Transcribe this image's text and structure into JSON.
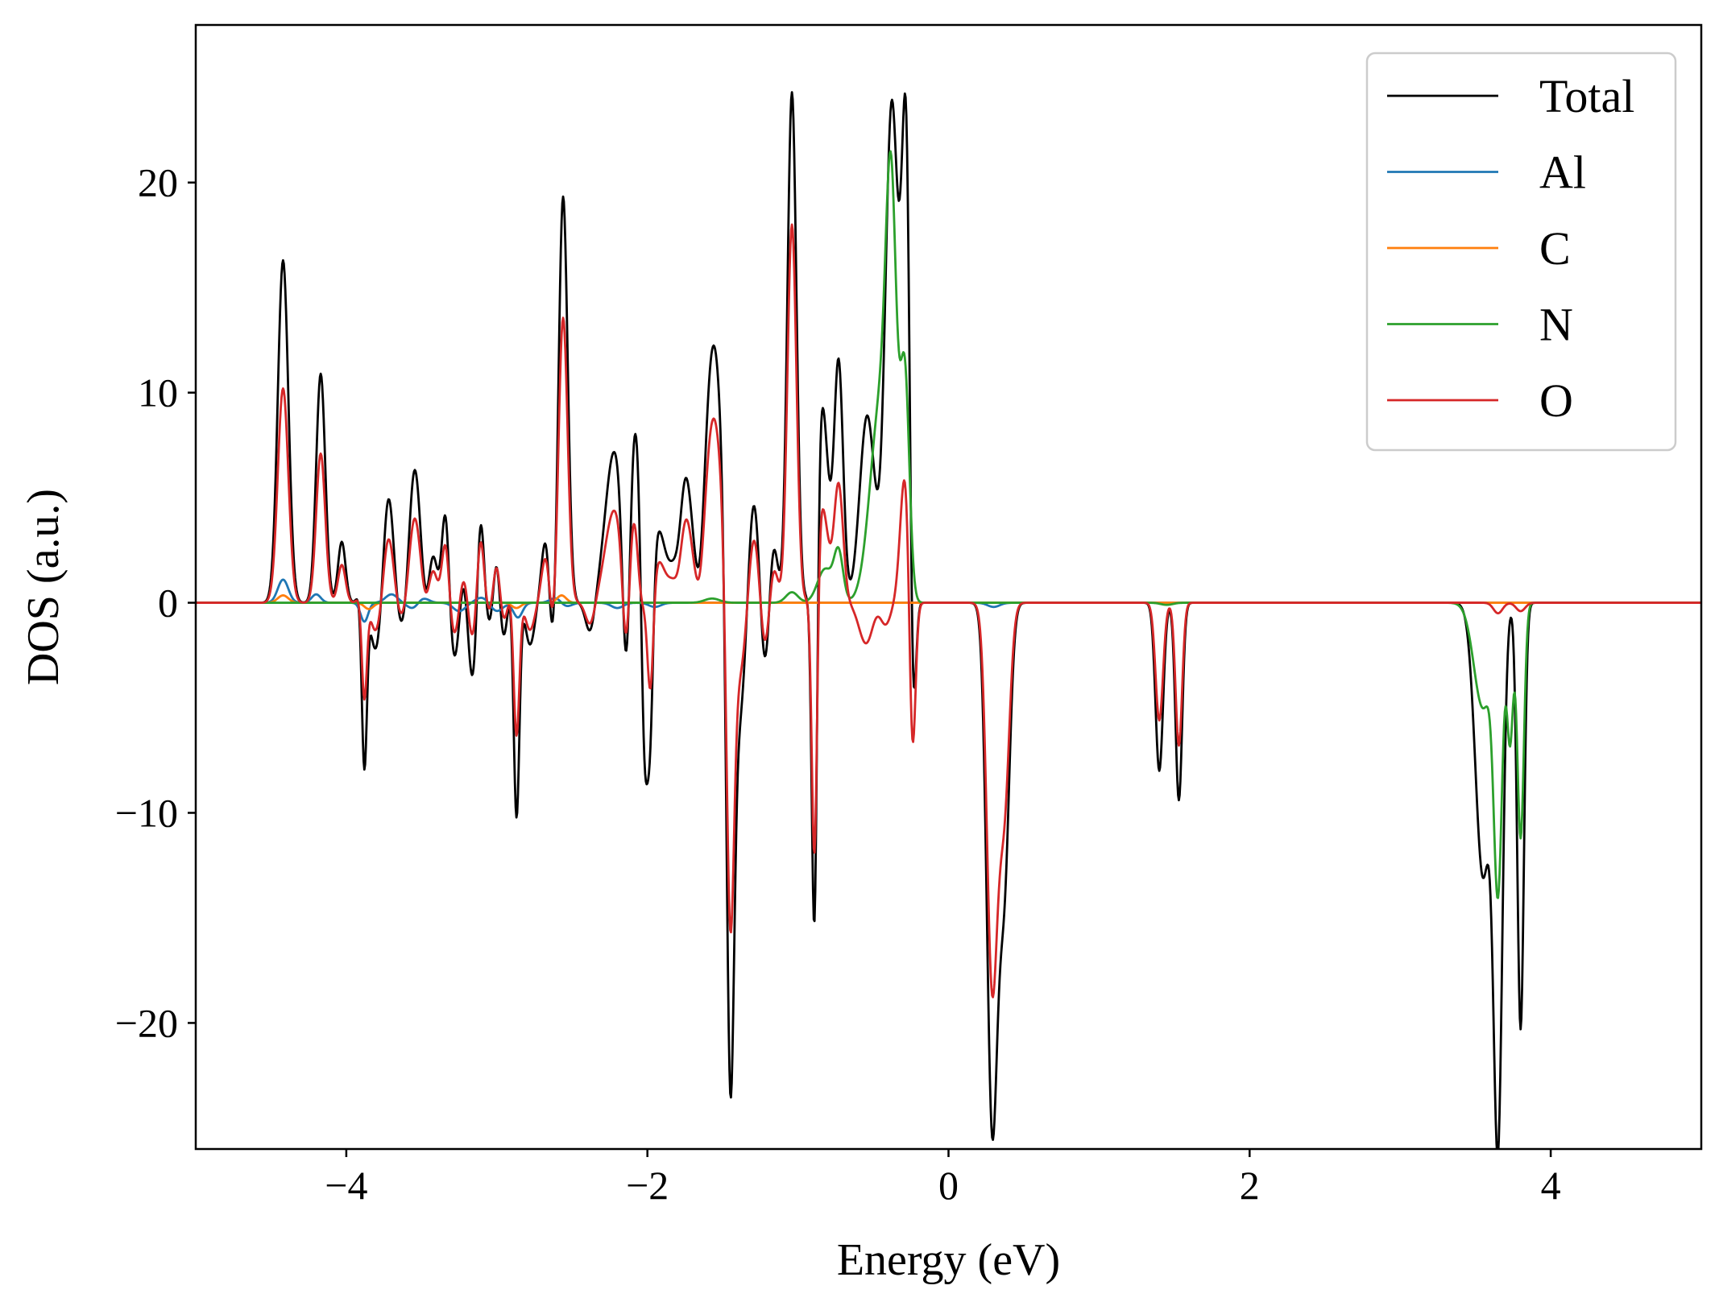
{
  "chart_data": {
    "type": "line",
    "xlabel": "Energy (eV)",
    "ylabel": "DOS (a.u.)",
    "xlim": [
      -5,
      5
    ],
    "ylim": [
      -26,
      27.5
    ],
    "xticks": [
      -4,
      -2,
      0,
      2,
      4
    ],
    "xtick_labels": [
      "−4",
      "−2",
      "0",
      "2",
      "4"
    ],
    "yticks": [
      -20,
      -10,
      0,
      10,
      20
    ],
    "ytick_labels": [
      "−20",
      "−10",
      "0",
      "10",
      "20"
    ],
    "grid": false,
    "legend_position": "top-right",
    "series": [
      {
        "name": "Total",
        "color": "#000000",
        "peaks": [
          [
            -4.42,
            16.3,
            0.035
          ],
          [
            -4.17,
            10.9,
            0.03
          ],
          [
            -4.03,
            2.9,
            0.025
          ],
          [
            -3.88,
            2.9,
            0.025
          ],
          [
            -3.72,
            5.4,
            0.035
          ],
          [
            -3.55,
            7.8,
            0.04
          ],
          [
            -3.43,
            4.0,
            0.03
          ],
          [
            -3.34,
            5.6,
            0.025
          ],
          [
            -3.22,
            4.0,
            0.03
          ],
          [
            -3.11,
            7.1,
            0.025
          ],
          [
            -3.0,
            5.6,
            0.025
          ],
          [
            -2.88,
            2.8,
            0.03
          ],
          [
            -2.67,
            3.5,
            0.03
          ],
          [
            -2.56,
            19.4,
            0.03
          ],
          [
            -2.22,
            7.2,
            0.06
          ],
          [
            -2.08,
            8.2,
            0.04
          ],
          [
            -1.93,
            3.5,
            0.05
          ],
          [
            -1.76,
            7.0,
            0.05
          ],
          [
            -1.56,
            12.3,
            0.06
          ],
          [
            -1.3,
            10.4,
            0.05
          ],
          [
            -1.17,
            4.5,
            0.03
          ],
          [
            -1.04,
            24.3,
            0.03
          ],
          [
            -0.84,
            9.5,
            0.04
          ],
          [
            -0.73,
            11.4,
            0.03
          ],
          [
            -0.54,
            12.5,
            0.05
          ],
          [
            -0.38,
            25.5,
            0.045
          ],
          [
            -0.28,
            22.5,
            0.03
          ]
        ],
        "dips": [
          [
            -3.88,
            -10.5,
            0.018
          ],
          [
            -3.8,
            -2.5,
            0.04
          ],
          [
            -3.6,
            -2.5,
            0.05
          ],
          [
            -3.45,
            -2.3,
            0.035
          ],
          [
            -3.28,
            -3.2,
            0.05
          ],
          [
            -3.15,
            -4.8,
            0.05
          ],
          [
            -2.99,
            -4.0,
            0.04
          ],
          [
            -2.87,
            -12.8,
            0.02
          ],
          [
            -2.78,
            -2.0,
            0.03
          ],
          [
            -2.63,
            -3.6,
            0.025
          ],
          [
            -2.38,
            -1.5,
            0.03
          ],
          [
            -2.14,
            -7.9,
            0.025
          ],
          [
            -2.02,
            -9.8,
            0.022
          ],
          [
            -1.98,
            -7.5,
            0.02
          ],
          [
            -1.79,
            -2.6,
            0.03
          ],
          [
            -1.65,
            -2.4,
            0.03
          ],
          [
            -1.45,
            -23.0,
            0.025
          ],
          [
            -1.36,
            -8.5,
            0.06
          ],
          [
            -1.22,
            -6.0,
            0.04
          ],
          [
            -0.89,
            -19.5,
            0.018
          ],
          [
            -0.54,
            -3.6,
            0.05
          ],
          [
            -0.42,
            -3.0,
            0.04
          ],
          [
            -0.24,
            -11.0,
            0.02
          ],
          [
            0.29,
            -24.5,
            0.035
          ],
          [
            0.37,
            -13.0,
            0.035
          ],
          [
            1.4,
            -8.0,
            0.025
          ],
          [
            1.53,
            -9.4,
            0.022
          ],
          [
            3.65,
            -24.5,
            0.03
          ],
          [
            3.55,
            -13.0,
            0.05
          ],
          [
            3.8,
            -20.3,
            0.022
          ]
        ]
      },
      {
        "name": "Al",
        "color": "#1f77b4",
        "peaks": [
          [
            -4.42,
            1.1,
            0.035
          ],
          [
            -4.2,
            0.4,
            0.03
          ],
          [
            -3.7,
            0.4,
            0.04
          ],
          [
            -3.5,
            0.3,
            0.04
          ],
          [
            -3.1,
            0.25,
            0.04
          ],
          [
            -2.6,
            0.3,
            0.04
          ]
        ],
        "dips": [
          [
            -3.88,
            -0.9,
            0.025
          ],
          [
            -3.55,
            -0.35,
            0.04
          ],
          [
            -3.25,
            -0.4,
            0.04
          ],
          [
            -3.0,
            -0.4,
            0.04
          ],
          [
            -2.86,
            -0.7,
            0.03
          ],
          [
            -2.55,
            -0.25,
            0.04
          ],
          [
            -2.2,
            -0.25,
            0.04
          ],
          [
            -1.95,
            -0.2,
            0.04
          ],
          [
            0.3,
            -0.2,
            0.04
          ]
        ]
      },
      {
        "name": "C",
        "color": "#ff7f0e",
        "peaks": [
          [
            -4.42,
            0.35,
            0.035
          ],
          [
            -2.57,
            0.35,
            0.03
          ]
        ],
        "dips": [
          [
            -3.85,
            -0.3,
            0.03
          ],
          [
            -2.87,
            -0.25,
            0.03
          ]
        ]
      },
      {
        "name": "N",
        "color": "#2ca02c",
        "peaks": [
          [
            -1.57,
            0.2,
            0.05
          ],
          [
            -1.04,
            0.5,
            0.04
          ],
          [
            -0.82,
            1.6,
            0.05
          ],
          [
            -0.73,
            2.3,
            0.03
          ],
          [
            -0.45,
            9.5,
            0.07
          ],
          [
            -0.38,
            15.4,
            0.035
          ],
          [
            -0.29,
            10.4,
            0.03
          ]
        ],
        "dips": [
          [
            1.45,
            -0.1,
            0.04
          ],
          [
            3.55,
            -5.0,
            0.06
          ],
          [
            3.65,
            -12.8,
            0.028
          ],
          [
            3.73,
            -6.5,
            0.02
          ],
          [
            3.8,
            -11.2,
            0.022
          ]
        ]
      },
      {
        "name": "O",
        "color": "#d62728",
        "peaks": [
          [
            -4.42,
            10.2,
            0.035
          ],
          [
            -4.17,
            7.1,
            0.03
          ],
          [
            -4.03,
            1.8,
            0.025
          ],
          [
            -3.88,
            1.8,
            0.025
          ],
          [
            -3.72,
            3.3,
            0.035
          ],
          [
            -3.55,
            4.9,
            0.04
          ],
          [
            -3.43,
            2.6,
            0.03
          ],
          [
            -3.34,
            3.6,
            0.025
          ],
          [
            -3.22,
            2.8,
            0.03
          ],
          [
            -3.11,
            4.6,
            0.025
          ],
          [
            -3.0,
            3.8,
            0.025
          ],
          [
            -2.88,
            1.6,
            0.03
          ],
          [
            -2.67,
            2.5,
            0.03
          ],
          [
            -2.56,
            13.6,
            0.03
          ],
          [
            -2.22,
            4.4,
            0.06
          ],
          [
            -2.08,
            5.6,
            0.04
          ],
          [
            -1.93,
            2.0,
            0.05
          ],
          [
            -1.76,
            4.8,
            0.05
          ],
          [
            -1.56,
            8.8,
            0.06
          ],
          [
            -1.3,
            7.6,
            0.05
          ],
          [
            -1.17,
            2.8,
            0.03
          ],
          [
            -1.04,
            18.0,
            0.03
          ],
          [
            -0.84,
            4.6,
            0.04
          ],
          [
            -0.73,
            5.6,
            0.03
          ],
          [
            -0.45,
            1.2,
            0.07
          ],
          [
            -0.29,
            6.0,
            0.03
          ]
        ],
        "dips": [
          [
            -3.88,
            -6.2,
            0.018
          ],
          [
            -3.8,
            -1.5,
            0.04
          ],
          [
            -3.6,
            -1.5,
            0.05
          ],
          [
            -3.45,
            -1.4,
            0.035
          ],
          [
            -3.28,
            -1.9,
            0.05
          ],
          [
            -3.15,
            -2.4,
            0.05
          ],
          [
            -2.99,
            -2.2,
            0.04
          ],
          [
            -2.87,
            -7.8,
            0.02
          ],
          [
            -2.78,
            -1.3,
            0.03
          ],
          [
            -2.63,
            -2.1,
            0.025
          ],
          [
            -2.38,
            -1.1,
            0.03
          ],
          [
            -2.14,
            -5.0,
            0.025
          ],
          [
            -2.05,
            -3.5,
            0.03
          ],
          [
            -1.98,
            -5.3,
            0.02
          ],
          [
            -1.79,
            -2.2,
            0.03
          ],
          [
            -1.65,
            -1.8,
            0.03
          ],
          [
            -1.45,
            -15.8,
            0.025
          ],
          [
            -1.35,
            -6.0,
            0.06
          ],
          [
            -1.22,
            -4.0,
            0.04
          ],
          [
            -0.89,
            -14.0,
            0.018
          ],
          [
            -0.54,
            -2.4,
            0.05
          ],
          [
            -0.42,
            -2.0,
            0.04
          ],
          [
            -0.24,
            -8.0,
            0.02
          ],
          [
            0.29,
            -18.0,
            0.035
          ],
          [
            0.37,
            -9.5,
            0.035
          ],
          [
            1.4,
            -5.6,
            0.025
          ],
          [
            1.53,
            -6.8,
            0.022
          ],
          [
            3.65,
            -0.5,
            0.03
          ],
          [
            3.8,
            -0.4,
            0.03
          ]
        ]
      }
    ]
  }
}
